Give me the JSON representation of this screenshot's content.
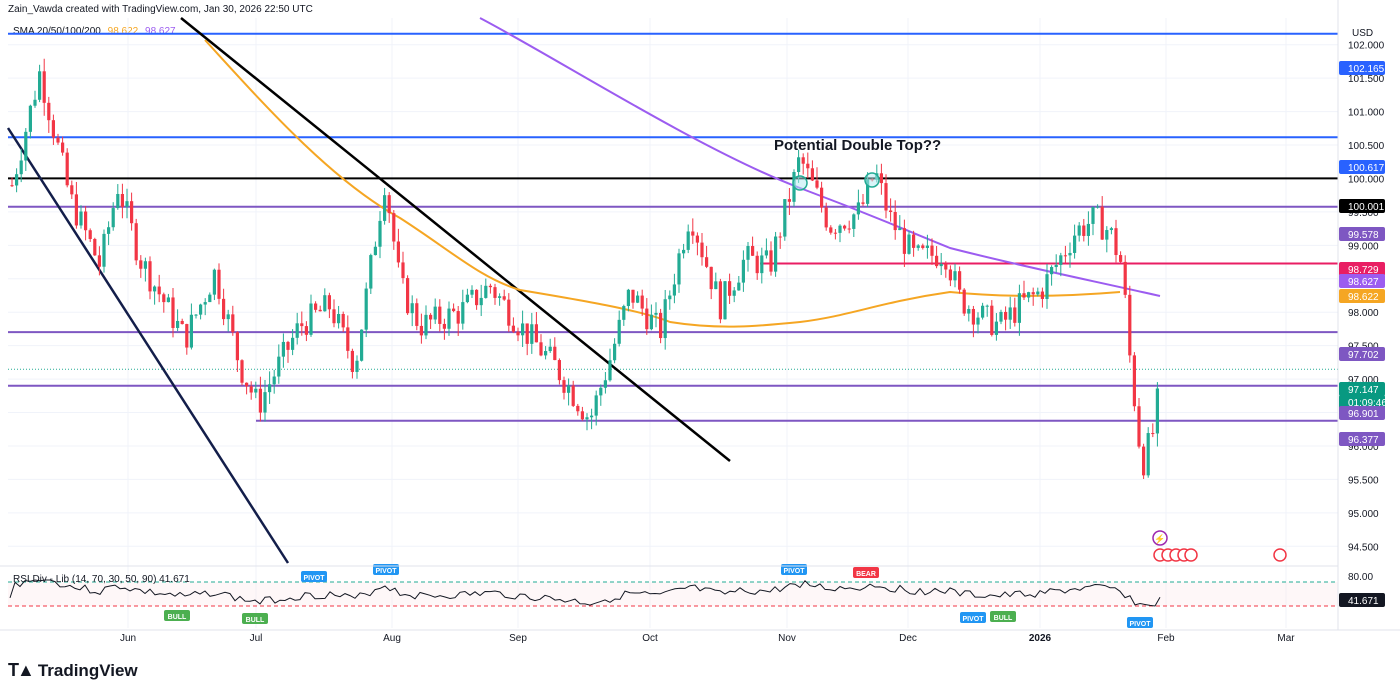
{
  "header": {
    "attribution": "Zain_Vawda created with TradingView.com, Jan 30, 2026 22:50 UTC",
    "indicator_name": "SMA 20/50/100/200",
    "indicator_value_1": "98.622",
    "indicator_value_2": "98.627",
    "currency": "USD"
  },
  "branding": {
    "logo_text": "TradingView"
  },
  "colors": {
    "bull": "#22ab94",
    "bear": "#f23645",
    "sma100": "#f5a623",
    "sma200": "#9c5cf0",
    "level_blue": "#2962ff",
    "level_purple": "#7e57c2",
    "level_black": "#000000",
    "level_pink": "#e91e63"
  },
  "chart_data": {
    "type": "candlestick",
    "annotation": "Potential Double Top??",
    "price_axis": {
      "range": [
        94.25,
        102.4
      ],
      "ticks": [
        "102.000",
        "101.500",
        "101.000",
        "100.500",
        "100.000",
        "99.500",
        "99.000",
        "98.500",
        "98.000",
        "97.500",
        "97.000",
        "96.500",
        "96.000",
        "95.500",
        "95.000",
        "94.500"
      ]
    },
    "time_axis": [
      "Jun",
      "Jul",
      "Aug",
      "Sep",
      "Oct",
      "Nov",
      "Dec",
      "2026",
      "Feb",
      "Mar"
    ],
    "price_labels": [
      {
        "text": "102.165",
        "color": "#2962ff"
      },
      {
        "text": "100.617",
        "color": "#2962ff"
      },
      {
        "text": "100.001",
        "color": "#000000"
      },
      {
        "text": "99.578",
        "color": "#7e57c2"
      },
      {
        "text": "98.729",
        "color": "#e91e63"
      },
      {
        "text": "98.627",
        "color": "#9c5cf0"
      },
      {
        "text": "98.622",
        "color": "#f5a623"
      },
      {
        "text": "97.702",
        "color": "#7e57c2"
      },
      {
        "text": "97.147",
        "color": "#089981"
      },
      {
        "text": "01:09:46",
        "color": "#089981"
      },
      {
        "text": "96.901",
        "color": "#7e57c2"
      },
      {
        "text": "96.377",
        "color": "#7e57c2"
      }
    ],
    "horizontal_levels": [
      102.165,
      100.617,
      100.001,
      99.578,
      98.729,
      97.702,
      96.901,
      96.377
    ],
    "last_price": 97.147,
    "sma100_value": 98.622,
    "sma200_value": 98.627,
    "rsi": {
      "label": "RSI Div - Lib (14, 70, 30, 50, 90)",
      "value": "41.671",
      "axis_label": "80.00",
      "markers": [
        "PIVOT",
        "PIVOT",
        "BULL",
        "BULL",
        "PIVOT",
        "BEAR",
        "PIVOT",
        "BULL",
        "PIVOT"
      ]
    }
  }
}
